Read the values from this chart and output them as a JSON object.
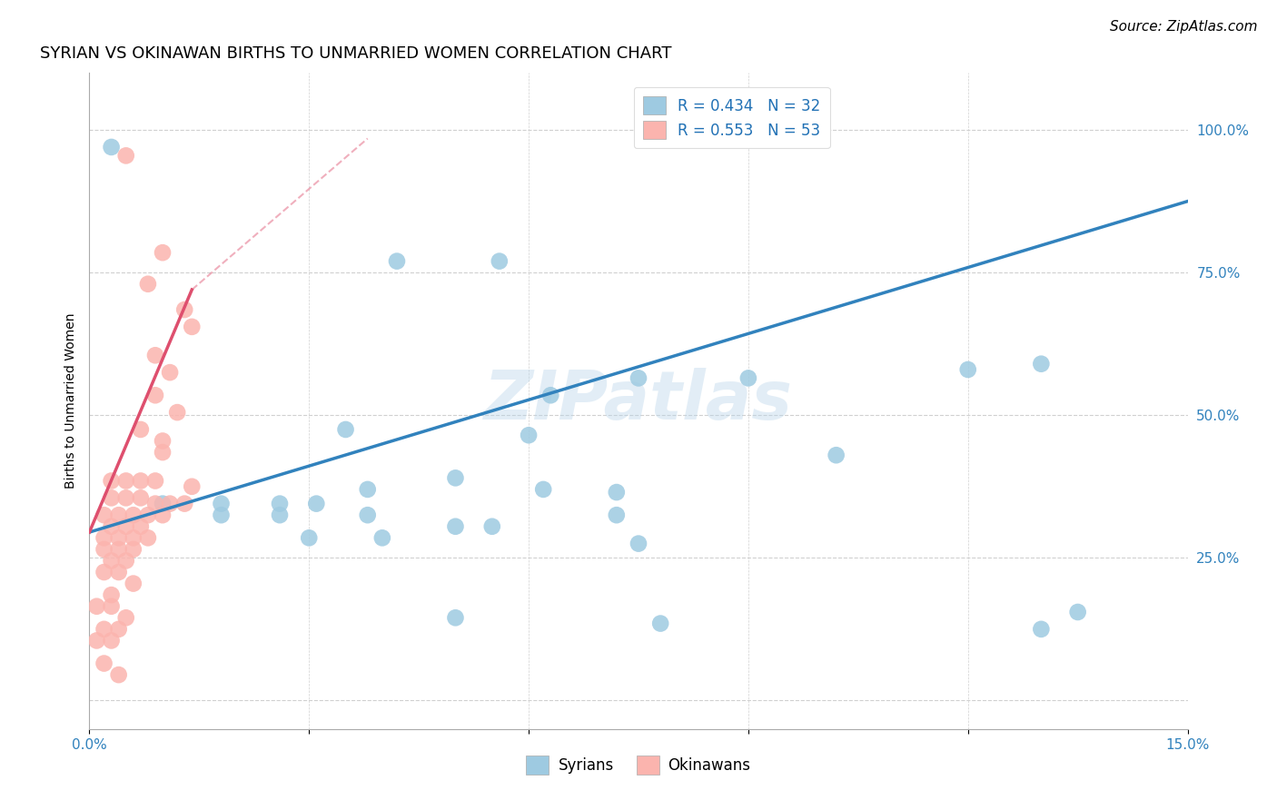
{
  "title": "SYRIAN VS OKINAWAN BIRTHS TO UNMARRIED WOMEN CORRELATION CHART",
  "source": "Source: ZipAtlas.com",
  "ylabel": "Births to Unmarried Women",
  "xlabel": "",
  "watermark": "ZIPatlas",
  "xlim": [
    0.0,
    0.15
  ],
  "ylim": [
    -0.05,
    1.1
  ],
  "xticks": [
    0.0,
    0.03,
    0.06,
    0.09,
    0.12,
    0.15
  ],
  "xticklabels": [
    "0.0%",
    "",
    "",
    "",
    "",
    "15.0%"
  ],
  "yticks_right": [
    0.0,
    0.25,
    0.5,
    0.75,
    1.0
  ],
  "yticklabels_right": [
    "",
    "25.0%",
    "50.0%",
    "75.0%",
    "100.0%"
  ],
  "legend_r_blue": "R = 0.434   N = 32",
  "legend_r_pink": "R = 0.553   N = 53",
  "legend_label_blue": "Syrians",
  "legend_label_pink": "Okinawans",
  "blue_color": "#9ecae1",
  "pink_color": "#fbb4ae",
  "blue_line_color": "#3182bd",
  "pink_line_color": "#de4f6e",
  "blue_scatter": [
    [
      0.003,
      0.97
    ],
    [
      0.042,
      0.77
    ],
    [
      0.056,
      0.77
    ],
    [
      0.075,
      0.565
    ],
    [
      0.063,
      0.535
    ],
    [
      0.035,
      0.475
    ],
    [
      0.06,
      0.465
    ],
    [
      0.09,
      0.565
    ],
    [
      0.12,
      0.58
    ],
    [
      0.13,
      0.59
    ],
    [
      0.102,
      0.43
    ],
    [
      0.05,
      0.39
    ],
    [
      0.038,
      0.37
    ],
    [
      0.062,
      0.37
    ],
    [
      0.072,
      0.365
    ],
    [
      0.01,
      0.345
    ],
    [
      0.018,
      0.345
    ],
    [
      0.026,
      0.345
    ],
    [
      0.031,
      0.345
    ],
    [
      0.018,
      0.325
    ],
    [
      0.026,
      0.325
    ],
    [
      0.038,
      0.325
    ],
    [
      0.072,
      0.325
    ],
    [
      0.05,
      0.305
    ],
    [
      0.055,
      0.305
    ],
    [
      0.03,
      0.285
    ],
    [
      0.04,
      0.285
    ],
    [
      0.075,
      0.275
    ],
    [
      0.05,
      0.145
    ],
    [
      0.078,
      0.135
    ],
    [
      0.13,
      0.125
    ],
    [
      0.135,
      0.155
    ]
  ],
  "pink_scatter": [
    [
      0.005,
      0.955
    ],
    [
      0.01,
      0.785
    ],
    [
      0.008,
      0.73
    ],
    [
      0.013,
      0.685
    ],
    [
      0.014,
      0.655
    ],
    [
      0.009,
      0.605
    ],
    [
      0.011,
      0.575
    ],
    [
      0.009,
      0.535
    ],
    [
      0.012,
      0.505
    ],
    [
      0.007,
      0.475
    ],
    [
      0.01,
      0.455
    ],
    [
      0.01,
      0.435
    ],
    [
      0.003,
      0.385
    ],
    [
      0.005,
      0.385
    ],
    [
      0.007,
      0.385
    ],
    [
      0.009,
      0.385
    ],
    [
      0.014,
      0.375
    ],
    [
      0.003,
      0.355
    ],
    [
      0.005,
      0.355
    ],
    [
      0.007,
      0.355
    ],
    [
      0.009,
      0.345
    ],
    [
      0.011,
      0.345
    ],
    [
      0.013,
      0.345
    ],
    [
      0.002,
      0.325
    ],
    [
      0.004,
      0.325
    ],
    [
      0.006,
      0.325
    ],
    [
      0.008,
      0.325
    ],
    [
      0.01,
      0.325
    ],
    [
      0.003,
      0.305
    ],
    [
      0.005,
      0.305
    ],
    [
      0.007,
      0.305
    ],
    [
      0.002,
      0.285
    ],
    [
      0.004,
      0.285
    ],
    [
      0.006,
      0.285
    ],
    [
      0.008,
      0.285
    ],
    [
      0.002,
      0.265
    ],
    [
      0.004,
      0.265
    ],
    [
      0.006,
      0.265
    ],
    [
      0.003,
      0.245
    ],
    [
      0.005,
      0.245
    ],
    [
      0.002,
      0.225
    ],
    [
      0.004,
      0.225
    ],
    [
      0.006,
      0.205
    ],
    [
      0.003,
      0.185
    ],
    [
      0.001,
      0.165
    ],
    [
      0.003,
      0.165
    ],
    [
      0.005,
      0.145
    ],
    [
      0.002,
      0.125
    ],
    [
      0.004,
      0.125
    ],
    [
      0.001,
      0.105
    ],
    [
      0.003,
      0.105
    ],
    [
      0.002,
      0.065
    ],
    [
      0.004,
      0.045
    ]
  ],
  "blue_line": {
    "x0": 0.0,
    "y0": 0.295,
    "x1": 0.15,
    "y1": 0.875
  },
  "pink_line": {
    "x0": 0.0,
    "y0": 0.295,
    "x1": 0.014,
    "y1": 0.72
  },
  "pink_line_dashed": {
    "x0": 0.014,
    "y0": 0.72,
    "x1": 0.038,
    "y1": 0.985
  },
  "grid_color": "#d0d0d0",
  "bg_color": "#ffffff",
  "title_fontsize": 13,
  "label_fontsize": 10,
  "tick_fontsize": 11,
  "legend_fontsize": 12,
  "source_fontsize": 11
}
